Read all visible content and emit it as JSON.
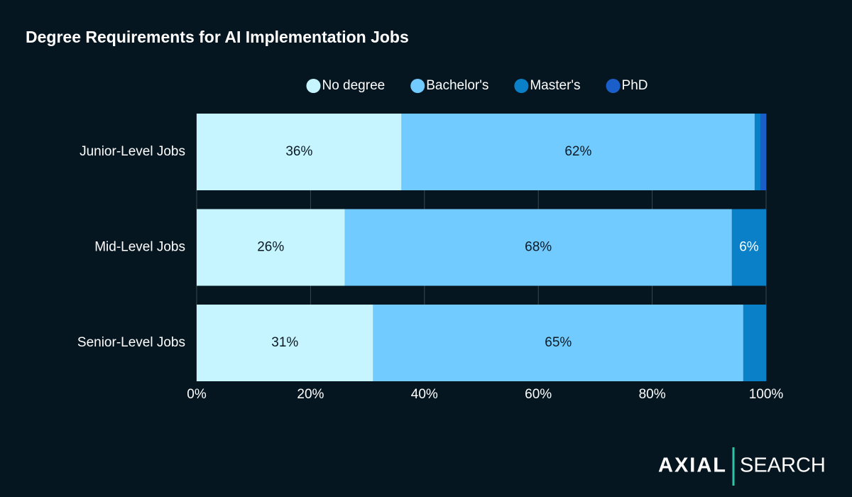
{
  "chart_data": {
    "type": "stacked-barh",
    "title": "Degree Requirements for AI Implementation Jobs",
    "categories": [
      "Junior-Level Jobs",
      "Mid-Level Jobs",
      "Senior-Level Jobs"
    ],
    "series": [
      {
        "name": "No degree",
        "color": "#c6f5ff",
        "values": [
          36,
          26,
          31
        ],
        "value_labels": [
          "36%",
          "26%",
          "31%"
        ]
      },
      {
        "name": "Bachelor's",
        "color": "#72cbff",
        "values": [
          62,
          68,
          65
        ],
        "value_labels": [
          "62%",
          "68%",
          "65%"
        ]
      },
      {
        "name": "Master's",
        "color": "#0a80c8",
        "values": [
          1,
          6,
          4
        ],
        "value_labels": [
          null,
          "6%",
          null
        ]
      },
      {
        "name": "PhD",
        "color": "#1a5fc9",
        "values": [
          1,
          0,
          0
        ],
        "value_labels": [
          null,
          null,
          null
        ]
      }
    ],
    "xlim": [
      0,
      100
    ],
    "xticks": [
      {
        "value": 0,
        "label": "0%"
      },
      {
        "value": 20,
        "label": "20%"
      },
      {
        "value": 40,
        "label": "40%"
      },
      {
        "value": 60,
        "label": "60%"
      },
      {
        "value": 80,
        "label": "80%"
      },
      {
        "value": 100,
        "label": "100%"
      }
    ],
    "grid": true,
    "legend": "top",
    "branding": {
      "left": "AXIAL",
      "right": "SEARCH"
    }
  }
}
